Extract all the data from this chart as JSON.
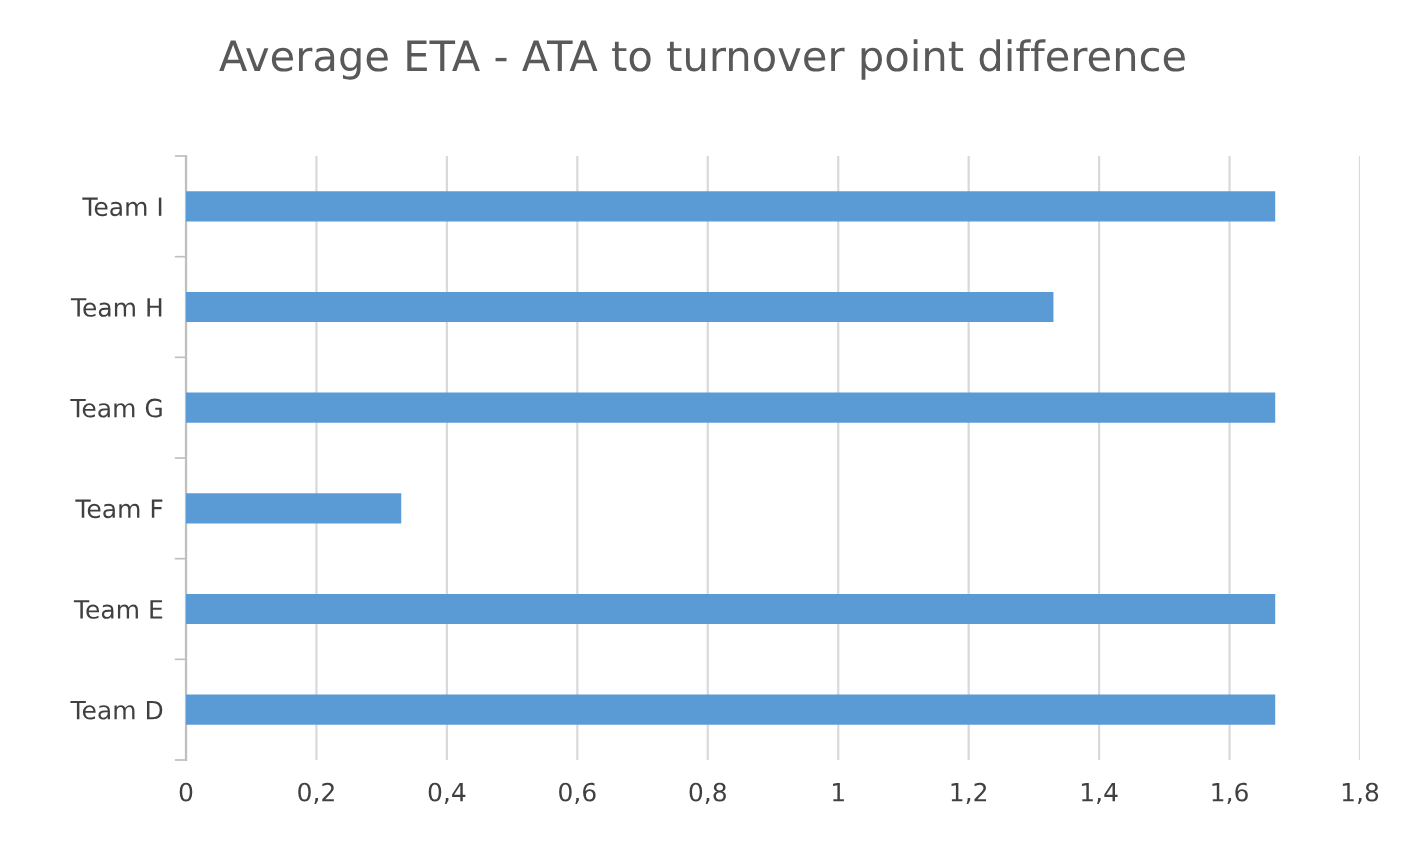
{
  "chart_data": {
    "type": "bar",
    "orientation": "horizontal",
    "title": "Average ETA - ATA to turnover point difference",
    "categories": [
      "Team I",
      "Team H",
      "Team G",
      "Team F",
      "Team E",
      "Team D"
    ],
    "values": [
      1.67,
      1.33,
      1.67,
      0.33,
      1.67,
      1.67
    ],
    "color": "#5b9bd5",
    "xlim": [
      0,
      1.8
    ],
    "xticks": [
      0,
      {
        "value": 0.2,
        "label": "0,2"
      },
      {
        "value": 0.4,
        "label": "0,4"
      },
      {
        "value": 0.6,
        "label": "0,6"
      },
      {
        "value": 0.8,
        "label": "0,8"
      },
      1,
      {
        "value": 1.2,
        "label": "1,2"
      },
      {
        "value": 1.4,
        "label": "1,4"
      },
      {
        "value": 1.6,
        "label": "1,6"
      },
      {
        "value": 1.8,
        "label": "1,8"
      }
    ],
    "grid": "x",
    "legend": false
  }
}
